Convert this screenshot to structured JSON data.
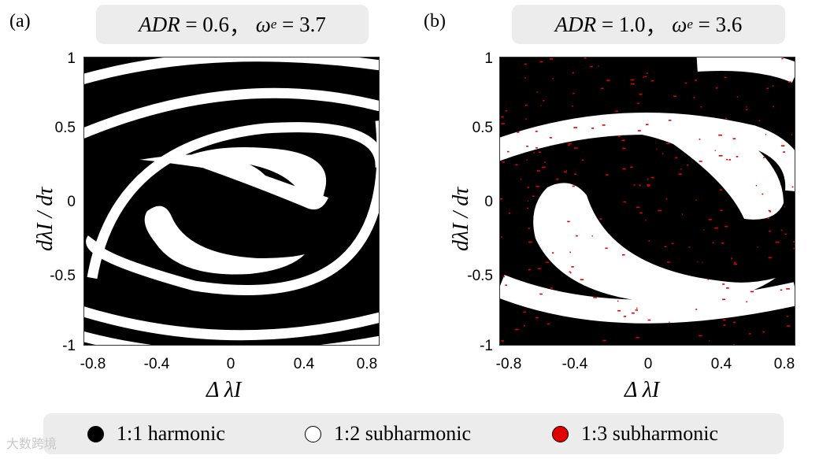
{
  "panels": [
    {
      "letter": "(a)",
      "title": {
        "param1_name": "ADR",
        "param1_value": "0.6",
        "param2_symbol": "ω",
        "param2_sub": "e",
        "param2_value": "3.7"
      },
      "yticks": [
        "1",
        "0.5",
        "0",
        "-0.5",
        "-1"
      ],
      "xticks": [
        "-0.8",
        "-0.4",
        "0",
        "0.4",
        "0.8"
      ]
    },
    {
      "letter": "(b)",
      "title": {
        "param1_name": "ADR",
        "param1_value": "1.0",
        "param2_symbol": "ω",
        "param2_sub": "e",
        "param2_value": "3.6"
      },
      "yticks": [
        "1",
        "0.5",
        "0",
        "-0.5",
        "-1"
      ],
      "xticks": [
        "-0.8",
        "-0.4",
        "0",
        "0.4",
        "0.8"
      ]
    }
  ],
  "axes": {
    "ylabel": "dλI / dτ",
    "xlabel": "Δ λI"
  },
  "legend": [
    {
      "label": "1:1 harmonic",
      "color": "#000000"
    },
    {
      "label": "1:2 subharmonic",
      "color": "#ffffff"
    },
    {
      "label": "1:3 subharmonic",
      "color": "#e00000"
    }
  ],
  "watermark": "大数跨境",
  "chart_data": [
    {
      "type": "heatmap",
      "title": "ADR = 0.6, ωe = 3.7",
      "xlabel": "Δ λI",
      "ylabel": "dλI / dτ",
      "xlim": [
        -0.8,
        0.8
      ],
      "ylim": [
        -1,
        1
      ],
      "categories": [
        "1:1 harmonic",
        "1:2 subharmonic"
      ],
      "description_regions": "black background (1:1) with white spiral bands and two white comma-shaped lobes (1:2)"
    },
    {
      "type": "heatmap",
      "title": "ADR = 1.0, ωe = 3.6",
      "xlabel": "Δ λI",
      "ylabel": "dλI / dτ",
      "xlim": [
        -0.8,
        0.8
      ],
      "ylim": [
        -1,
        1
      ],
      "categories": [
        "1:1 harmonic",
        "1:2 subharmonic",
        "1:3 subharmonic"
      ],
      "description_regions": "black background (1:1) with wide white spiral lobes (1:2) and scattered red points (1:3)"
    }
  ]
}
